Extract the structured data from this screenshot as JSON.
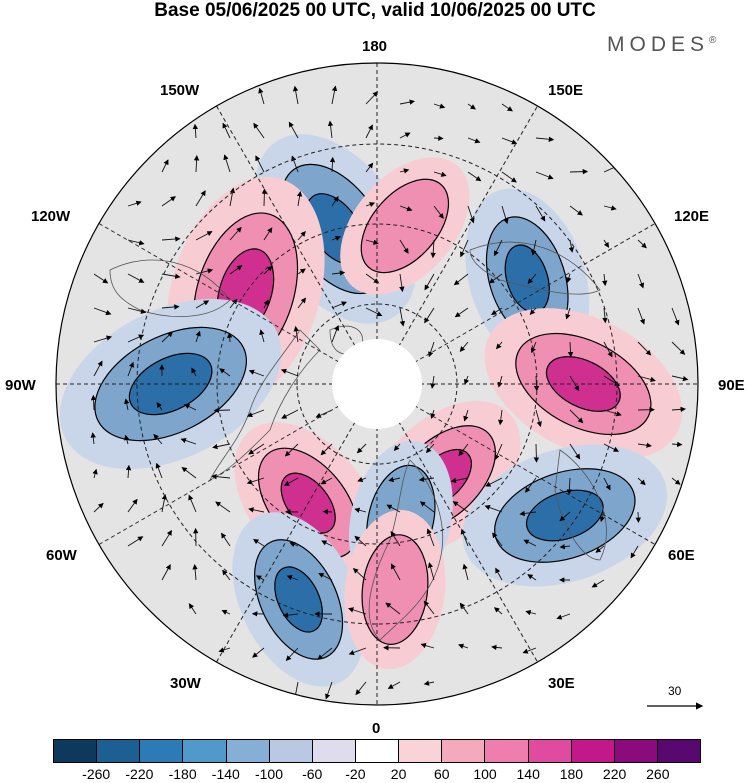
{
  "header": {
    "title": "Base 05/06/2025 00 UTC, valid 10/06/2025 00 UTC",
    "brand": "MODES",
    "brand_mark": "®"
  },
  "map": {
    "projection": "north-polar-stereographic",
    "meridian_labels": {
      "top": "180",
      "bottom": "0",
      "left": "90W",
      "right": "90E",
      "upper_left_1": "150W",
      "upper_left_2": "120W",
      "lower_left_1": "60W",
      "lower_left_2": "30W",
      "upper_right_1": "150E",
      "upper_right_2": "120E",
      "lower_right_1": "60E",
      "lower_right_2": "30E"
    },
    "vector_reference": "30",
    "anomaly_colors": {
      "negative_strong": "#2c6fa8",
      "negative_mid": "#7ea6cd",
      "negative_weak": "#c9d6ea",
      "neutral": "#e4e4e4",
      "positive_weak": "#f7cdd3",
      "positive_mid": "#ef8fb2",
      "positive_strong": "#cf2f8e"
    },
    "features": [
      {
        "type": "negative",
        "level": -180,
        "lon": -165,
        "lat": 55
      },
      {
        "type": "positive",
        "level": 100,
        "lon": 170,
        "lat": 55
      },
      {
        "type": "positive",
        "level": 220,
        "lon": -125,
        "lat": 55
      },
      {
        "type": "negative",
        "level": -220,
        "lon": -90,
        "lat": 45
      },
      {
        "type": "negative",
        "level": -140,
        "lon": 125,
        "lat": 50
      },
      {
        "type": "positive",
        "level": 180,
        "lon": 90,
        "lat": 45
      },
      {
        "type": "positive",
        "level": 140,
        "lon": 35,
        "lat": 65
      },
      {
        "type": "negative",
        "level": -180,
        "lon": 55,
        "lat": 40
      },
      {
        "type": "positive",
        "level": 140,
        "lon": -30,
        "lat": 60
      },
      {
        "type": "negative",
        "level": -140,
        "lon": -20,
        "lat": 40
      },
      {
        "type": "negative",
        "level": -100,
        "lon": 10,
        "lat": 60
      },
      {
        "type": "positive",
        "level": 100,
        "lon": 5,
        "lat": 45
      }
    ]
  },
  "colorbar": {
    "colors": [
      "#0d3a5c",
      "#1c5f93",
      "#2c7ab6",
      "#4f9acb",
      "#86afd6",
      "#b9c8e3",
      "#dedced",
      "#ffffff",
      "#f8d4d8",
      "#f4a9bd",
      "#ef7eae",
      "#e04a9f",
      "#c21889",
      "#8b0a7d",
      "#58086f"
    ],
    "ticks": [
      "-260",
      "-220",
      "-180",
      "-140",
      "-100",
      "-60",
      "-20",
      "20",
      "60",
      "100",
      "140",
      "180",
      "220",
      "260"
    ]
  }
}
